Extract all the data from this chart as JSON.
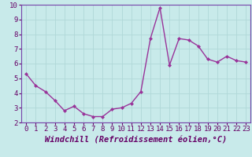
{
  "x": [
    0,
    1,
    2,
    3,
    4,
    5,
    6,
    7,
    8,
    9,
    10,
    11,
    12,
    13,
    14,
    15,
    16,
    17,
    18,
    19,
    20,
    21,
    22,
    23
  ],
  "y": [
    5.3,
    4.5,
    4.1,
    3.5,
    2.8,
    3.1,
    2.6,
    2.4,
    2.4,
    2.9,
    3.0,
    3.3,
    4.1,
    7.7,
    9.8,
    5.9,
    7.7,
    7.6,
    7.2,
    6.3,
    6.1,
    6.5,
    6.2,
    6.1
  ],
  "line_color": "#993399",
  "marker": "D",
  "marker_size": 2.0,
  "xlabel": "Windchill (Refroidissement éolien,°C)",
  "xlim_min": -0.5,
  "xlim_max": 23.5,
  "ylim_min": 2,
  "ylim_max": 10,
  "yticks": [
    2,
    3,
    4,
    5,
    6,
    7,
    8,
    9,
    10
  ],
  "xticks": [
    0,
    1,
    2,
    3,
    4,
    5,
    6,
    7,
    8,
    9,
    10,
    11,
    12,
    13,
    14,
    15,
    16,
    17,
    18,
    19,
    20,
    21,
    22,
    23
  ],
  "grid_color": "#b0d8d8",
  "bg_color": "#c8eaea",
  "tick_label_fontsize": 6.5,
  "xlabel_fontsize": 7.5,
  "line_width": 1.0,
  "spine_color": "#7744aa",
  "label_color": "#660066"
}
